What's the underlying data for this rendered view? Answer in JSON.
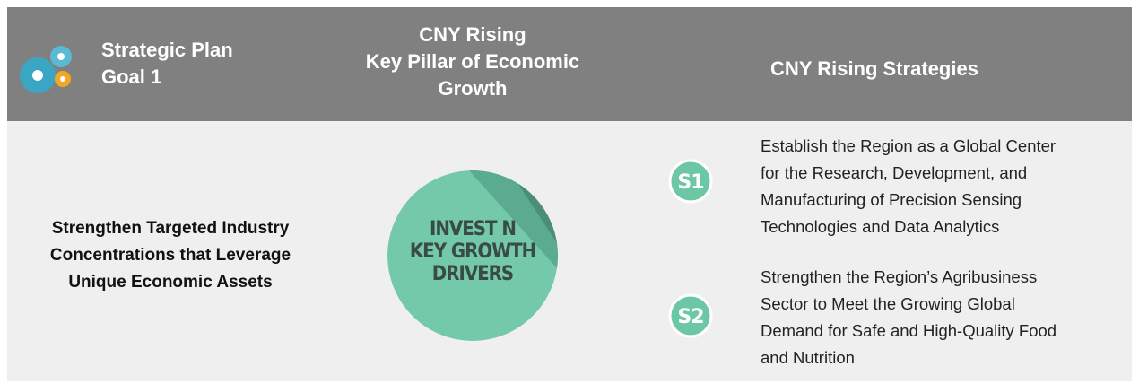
{
  "header": {
    "goal_label": [
      "Strategic Plan",
      "Goal 1"
    ],
    "pillar_label": [
      "CNY Rising",
      "Key Pillar of Economic",
      "Growth"
    ],
    "strategies_label": "CNY Rising Strategies"
  },
  "body": {
    "goal_text": [
      "Strengthen Targeted Industry",
      "Concentrations that Leverage",
      "Unique Economic Assets"
    ],
    "pillar_badge": [
      "INVEST N",
      "KEY GROWTH",
      "DRIVERS"
    ],
    "strategies": [
      {
        "badge": "S1",
        "lines": [
          "Establish the Region as a Global Center",
          "for the Research, Development, and",
          "Manufacturing of Precision Sensing",
          "Technologies and Data Analytics"
        ]
      },
      {
        "badge": "S2",
        "lines": [
          "Strengthen the Region’s Agribusiness",
          "Sector to Meet the Growing Global",
          "Demand for Safe and High-Quality Food",
          "and Nutrition"
        ]
      }
    ]
  }
}
